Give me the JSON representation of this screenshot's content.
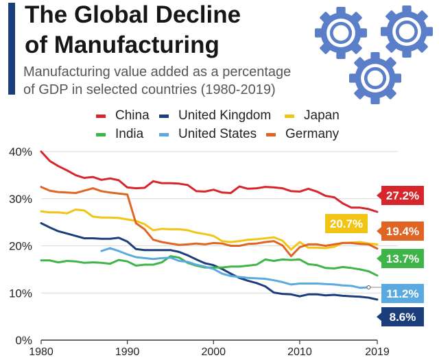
{
  "header": {
    "title_line1": "The Global Decline",
    "title_line2": "of Manufacturing",
    "subtitle_line1": "Manufacturing value added as a percentage",
    "subtitle_line2": "of GDP in selected countries (1980-2019)"
  },
  "icons": {
    "gears": "gears-icon"
  },
  "colors": {
    "accent": "#1b3d7a",
    "grid": "#d9d9d9",
    "axis": "#333333",
    "gear_fill": "#5b7ec9"
  },
  "chart_data": {
    "type": "line",
    "title": "The Global Decline of Manufacturing",
    "subtitle": "Manufacturing value added as a percentage of GDP in selected countries (1980-2019)",
    "xlabel": "",
    "ylabel": "",
    "xlim": [
      1980,
      2019
    ],
    "ylim": [
      0,
      40
    ],
    "grid": true,
    "legend_placement": "top",
    "x_ticks": [
      1980,
      1990,
      2000,
      2010,
      2019
    ],
    "y_ticks": [
      {
        "value": 0,
        "label": "0%"
      },
      {
        "value": 10,
        "label": "10%"
      },
      {
        "value": 20,
        "label": "20%"
      },
      {
        "value": 30,
        "label": "30%"
      },
      {
        "value": 40,
        "label": "40%"
      }
    ],
    "series": [
      {
        "name": "China",
        "color": "#d7262b",
        "end_label": "27.2%",
        "end_label_year": 2019,
        "x": [
          1980,
          1981,
          1982,
          1983,
          1984,
          1985,
          1986,
          1987,
          1988,
          1989,
          1990,
          1991,
          1992,
          1993,
          1994,
          1995,
          1996,
          1997,
          1998,
          1999,
          2000,
          2001,
          2002,
          2003,
          2004,
          2005,
          2006,
          2007,
          2008,
          2009,
          2010,
          2011,
          2012,
          2013,
          2014,
          2015,
          2016,
          2017,
          2018,
          2019
        ],
        "values": [
          40,
          38,
          36.9,
          36,
          35,
          34.4,
          34.6,
          34,
          34.3,
          33.9,
          32.4,
          32.2,
          32.3,
          33.7,
          33.3,
          33.3,
          33.2,
          32.9,
          31.6,
          31.5,
          31.9,
          31.3,
          31.2,
          32.6,
          32.1,
          32.2,
          32.5,
          32.4,
          32.2,
          31.6,
          31.5,
          32.1,
          31.5,
          30.6,
          30.3,
          29,
          28.1,
          28.1,
          27.8,
          27.2
        ]
      },
      {
        "name": "United Kingdom",
        "color": "#1b3d7a",
        "end_label": "8.6%",
        "end_label_year": 2019,
        "x": [
          1980,
          1981,
          1982,
          1983,
          1984,
          1985,
          1986,
          1987,
          1988,
          1989,
          1990,
          1991,
          1992,
          1993,
          1994,
          1995,
          1996,
          1997,
          1998,
          1999,
          2000,
          2001,
          2002,
          2003,
          2004,
          2005,
          2006,
          2007,
          2008,
          2009,
          2010,
          2011,
          2012,
          2013,
          2014,
          2015,
          2016,
          2017,
          2018,
          2019
        ],
        "values": [
          24.8,
          23.9,
          23.1,
          22.6,
          22.1,
          21.6,
          21.6,
          21.5,
          21.5,
          21.7,
          20.9,
          19.3,
          19.1,
          19.1,
          19.1,
          19.1,
          18.7,
          18,
          17.1,
          16.3,
          15.9,
          15.1,
          14.1,
          13.2,
          12.6,
          12.1,
          11.4,
          10.1,
          9.8,
          9.7,
          9.3,
          9.7,
          9.7,
          9.5,
          9.6,
          9.4,
          9.3,
          9.2,
          9,
          8.6
        ]
      },
      {
        "name": "Japan",
        "color": "#f2c413",
        "end_label": "20.7%",
        "end_label_year": 2016,
        "x": [
          1980,
          1981,
          1982,
          1983,
          1984,
          1985,
          1986,
          1987,
          1988,
          1989,
          1990,
          1991,
          1992,
          1993,
          1994,
          1995,
          1996,
          1997,
          1998,
          1999,
          2000,
          2001,
          2002,
          2003,
          2004,
          2005,
          2006,
          2007,
          2008,
          2009,
          2010,
          2011,
          2012,
          2013,
          2014,
          2015,
          2016,
          2017,
          2018,
          2019
        ],
        "values": [
          27.3,
          27.1,
          27.1,
          26.9,
          27.7,
          27.5,
          26.2,
          26,
          26,
          25.9,
          25.6,
          25.3,
          24.6,
          23.3,
          23.6,
          23.5,
          23.5,
          23.3,
          22.8,
          22.5,
          22.1,
          21,
          20.8,
          21,
          21.3,
          21.4,
          21.6,
          21.8,
          21.1,
          19.2,
          20.8,
          19.6,
          19.6,
          19.5,
          19.8,
          20.6,
          20.7,
          20.8,
          20.5,
          20.3
        ]
      },
      {
        "name": "India",
        "color": "#3fb549",
        "end_label": "13.7%",
        "end_label_year": 2019,
        "x": [
          1980,
          1981,
          1982,
          1983,
          1984,
          1985,
          1986,
          1987,
          1988,
          1989,
          1990,
          1991,
          1992,
          1993,
          1994,
          1995,
          1996,
          1997,
          1998,
          1999,
          2000,
          2001,
          2002,
          2003,
          2004,
          2005,
          2006,
          2007,
          2008,
          2009,
          2010,
          2011,
          2012,
          2013,
          2014,
          2015,
          2016,
          2017,
          2018,
          2019
        ],
        "values": [
          16.9,
          16.9,
          16.5,
          16.8,
          16.7,
          16.4,
          16.5,
          16.4,
          16.2,
          17,
          16.7,
          15.8,
          16,
          16,
          16.5,
          17.8,
          17.5,
          16.4,
          15.8,
          15.4,
          15.4,
          15.4,
          15.6,
          15.6,
          15.8,
          16,
          17.1,
          16.8,
          17.1,
          17,
          17.1,
          16.1,
          15.9,
          15.3,
          15.2,
          15.5,
          15.3,
          15,
          14.6,
          13.7
        ]
      },
      {
        "name": "United States",
        "color": "#5aaae0",
        "end_label": "11.2%",
        "end_label_year": 2019,
        "x": [
          1987,
          1988,
          1989,
          1990,
          1991,
          1992,
          1993,
          1994,
          1995,
          1996,
          1997,
          1998,
          1999,
          2000,
          2001,
          2002,
          2003,
          2004,
          2005,
          2006,
          2007,
          2008,
          2009,
          2010,
          2011,
          2012,
          2013,
          2014,
          2015,
          2016,
          2017,
          2018
        ],
        "values": [
          18.9,
          19.5,
          18.9,
          18.2,
          17.6,
          17.4,
          17.2,
          17.4,
          17.5,
          16.8,
          16.6,
          16,
          15.6,
          15.1,
          14.1,
          13.6,
          13.4,
          13.2,
          13.1,
          13,
          12.7,
          12.3,
          11.8,
          12,
          12,
          12,
          11.9,
          11.8,
          11.6,
          11.5,
          11.1,
          11.2
        ]
      },
      {
        "name": "Germany",
        "color": "#e06525",
        "end_label": "19.4%",
        "end_label_year": 2019,
        "x": [
          1980,
          1981,
          1982,
          1983,
          1984,
          1985,
          1986,
          1987,
          1988,
          1989,
          1990,
          1991,
          1992,
          1993,
          1994,
          1995,
          1996,
          1997,
          1998,
          1999,
          2000,
          2001,
          2002,
          2003,
          2004,
          2005,
          2006,
          2007,
          2008,
          2009,
          2010,
          2011,
          2012,
          2013,
          2014,
          2015,
          2016,
          2017,
          2018,
          2019
        ],
        "values": [
          32.5,
          31.7,
          31.4,
          31.3,
          31.2,
          31.7,
          32.2,
          31.6,
          31.3,
          31.1,
          30.9,
          24.8,
          23.5,
          21.3,
          20.8,
          20.5,
          20.2,
          20.3,
          20.5,
          20.3,
          20.6,
          20.5,
          20,
          20,
          20.4,
          20.5,
          20.8,
          21,
          20.1,
          17.8,
          19.7,
          20.3,
          20.3,
          20,
          20.3,
          20.6,
          20.6,
          20.4,
          20.3,
          19.4
        ]
      }
    ]
  }
}
